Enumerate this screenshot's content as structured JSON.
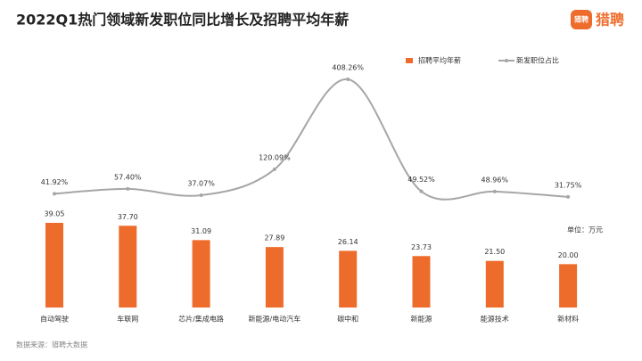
{
  "logo": "猎聘",
  "chart_data": {
    "type": "bar-line",
    "title": "2022Q1热门领域新发职位同比增长及招聘平均年薪",
    "unit_note": "单位：万元",
    "source": "数据来源：猎聘大数据",
    "categories": [
      "自动驾驶",
      "车联网",
      "芯片/集成电路",
      "新能源/电动汽车",
      "碳中和",
      "新能源",
      "能源技术",
      "新材料"
    ],
    "series": [
      {
        "name": "招聘平均年薪",
        "type": "bar",
        "color": "#ee6c2b",
        "values": [
          39.05,
          37.7,
          31.09,
          27.89,
          26.14,
          23.73,
          21.5,
          20.0
        ],
        "value_labels": [
          "39.05",
          "37.70",
          "31.09",
          "27.89",
          "26.14",
          "23.73",
          "21.50",
          "20.00"
        ]
      },
      {
        "name": "新发职位占比",
        "type": "line",
        "color": "#a6a6a6",
        "values": [
          41.92,
          57.4,
          37.07,
          120.09,
          408.26,
          49.52,
          48.96,
          31.75
        ],
        "value_labels": [
          "41.92%",
          "57.40%",
          "37.07%",
          "120.09%",
          "408.26%",
          "49.52%",
          "48.96%",
          "31.75%"
        ]
      }
    ]
  }
}
